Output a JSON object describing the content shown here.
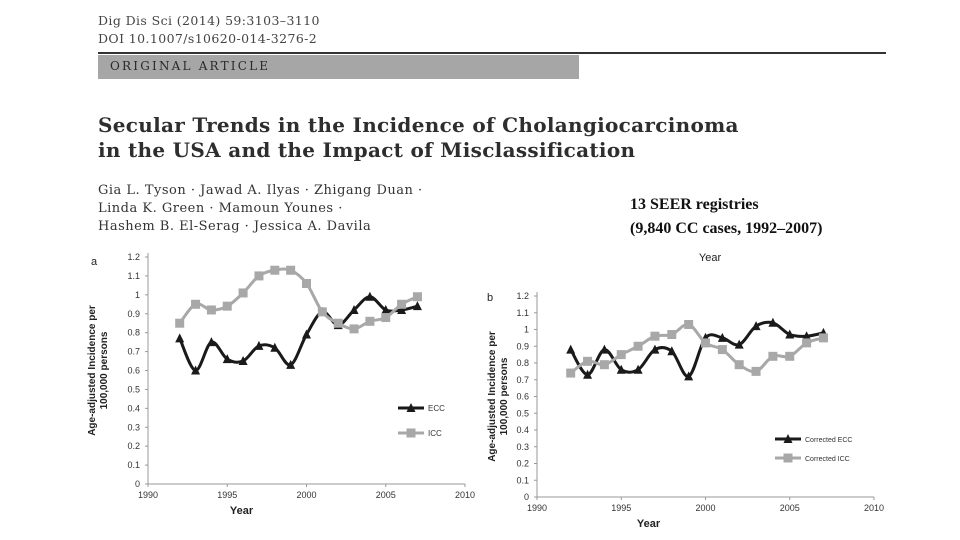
{
  "header": {
    "citation": "Dig Dis Sci (2014) 59:3103–3110",
    "doi": "DOI 10.1007/s10620-014-3276-2",
    "article_type": "ORIGINAL ARTICLE"
  },
  "paper": {
    "title_line1": "Secular Trends in the Incidence of Cholangiocarcinoma",
    "title_line2": "in the USA and the Impact of Misclassification",
    "authors_line1": "Gia L. Tyson · Jawad A. Ilyas · Zhigang Duan ·",
    "authors_line2": "Linda K. Green · Mamoun Younes ·",
    "authors_line3": "Hashem B. El-Serag · Jessica A. Davila"
  },
  "annotation": {
    "line1": "13 SEER registries",
    "line2": "(9,840 CC cases, 1992–2007)"
  },
  "chart_data": [
    {
      "type": "line",
      "panel": "a",
      "xlabel": "Year",
      "ylabel_line1": "Age-adjusted Incidence per",
      "ylabel_line2": "100,000 persons",
      "xlim": [
        1990,
        2010
      ],
      "ylim": [
        0,
        1.2
      ],
      "xticks": [
        1990,
        1995,
        2000,
        2005,
        2010
      ],
      "yticks": [
        "0",
        "0.1",
        "0.2",
        "0.3",
        "0.4",
        "0.5",
        "0.6",
        "0.7",
        "0.8",
        "0.9",
        "1",
        "1.1",
        "1.2"
      ],
      "x": [
        1992,
        1993,
        1994,
        1995,
        1996,
        1997,
        1998,
        1999,
        2000,
        2001,
        2002,
        2003,
        2004,
        2005,
        2006,
        2007
      ],
      "legend_position": "lower-right",
      "series": [
        {
          "name": "ECC",
          "marker": "triangle",
          "color": "#1a1a1a",
          "values": [
            0.77,
            0.6,
            0.75,
            0.66,
            0.65,
            0.73,
            0.72,
            0.63,
            0.79,
            0.91,
            0.84,
            0.92,
            0.99,
            0.92,
            0.92,
            0.94
          ]
        },
        {
          "name": "ICC",
          "marker": "square",
          "color": "#a8a8a8",
          "values": [
            0.85,
            0.95,
            0.92,
            0.94,
            1.01,
            1.1,
            1.13,
            1.13,
            1.06,
            0.91,
            0.85,
            0.82,
            0.86,
            0.88,
            0.95,
            0.99
          ]
        }
      ]
    },
    {
      "type": "line",
      "panel": "b",
      "title": "Year",
      "xlabel": "Year",
      "ylabel_line1": "Age-adjusted Incidence per",
      "ylabel_line2": "100,000 persons",
      "xlim": [
        1990,
        2010
      ],
      "ylim": [
        0,
        1.2
      ],
      "xticks": [
        1990,
        1995,
        2000,
        2005,
        2010
      ],
      "yticks": [
        "0",
        "0.1",
        "0.2",
        "0.3",
        "0.4",
        "0.5",
        "0.6",
        "0.7",
        "0.8",
        "0.9",
        "1",
        "1.1",
        "1.2"
      ],
      "x": [
        1992,
        1993,
        1994,
        1995,
        1996,
        1997,
        1998,
        1999,
        2000,
        2001,
        2002,
        2003,
        2004,
        2005,
        2006,
        2007
      ],
      "legend_position": "lower-right",
      "series": [
        {
          "name": "Corrected ECC",
          "marker": "triangle",
          "color": "#1a1a1a",
          "values": [
            0.88,
            0.73,
            0.88,
            0.76,
            0.76,
            0.88,
            0.87,
            0.72,
            0.95,
            0.95,
            0.91,
            1.02,
            1.04,
            0.97,
            0.96,
            0.98
          ]
        },
        {
          "name": "Corrected ICC",
          "marker": "square",
          "color": "#a8a8a8",
          "values": [
            0.74,
            0.81,
            0.79,
            0.85,
            0.9,
            0.96,
            0.97,
            1.03,
            0.92,
            0.88,
            0.79,
            0.75,
            0.84,
            0.84,
            0.92,
            0.95
          ]
        }
      ]
    }
  ]
}
